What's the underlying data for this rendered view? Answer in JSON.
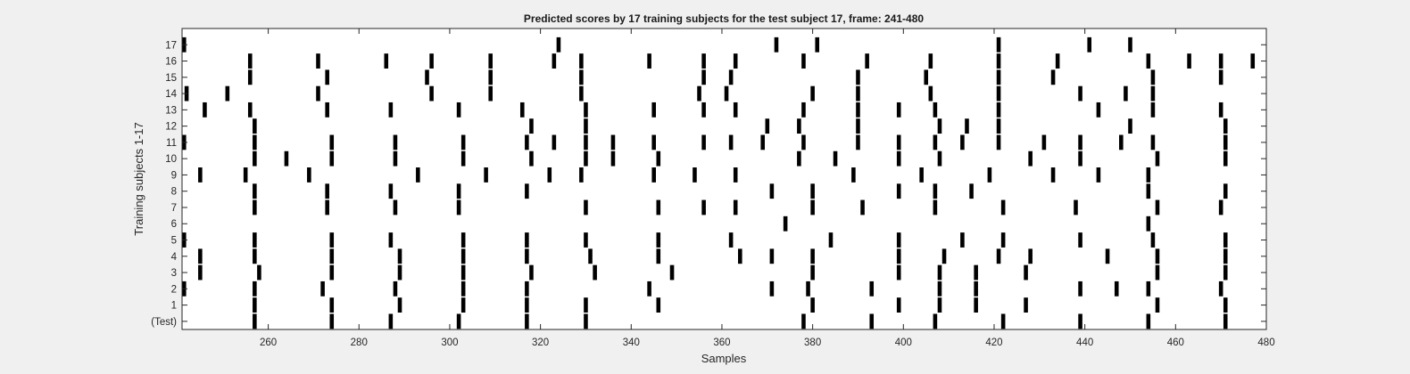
{
  "chart_data": {
    "type": "event-raster",
    "title": "Predicted scores by 17 training subjects for the test subject 17, frame: 241-480",
    "xlabel": "Samples",
    "ylabel": "Training subjects 1-17",
    "xlim": [
      241,
      480
    ],
    "xticks": [
      260,
      280,
      300,
      320,
      340,
      360,
      380,
      400,
      420,
      440,
      460,
      480
    ],
    "grid": false,
    "rows": [
      {
        "label": "(Test)",
        "events": [
          257,
          274,
          287,
          302,
          317,
          330,
          378,
          393,
          407,
          422,
          439,
          454,
          471
        ]
      },
      {
        "label": "1",
        "events": [
          257,
          274,
          289,
          303,
          317,
          330,
          346,
          380,
          399,
          408,
          416,
          427,
          456,
          471
        ]
      },
      {
        "label": "2",
        "events": [
          241,
          257,
          272,
          288,
          303,
          317,
          344,
          371,
          379,
          393,
          408,
          416,
          439,
          447,
          454,
          470
        ]
      },
      {
        "label": "3",
        "events": [
          245,
          258,
          274,
          289,
          303,
          318,
          332,
          349,
          380,
          399,
          408,
          416,
          427,
          456,
          471
        ]
      },
      {
        "label": "4",
        "events": [
          245,
          257,
          274,
          289,
          303,
          317,
          331,
          346,
          364,
          371,
          380,
          399,
          409,
          421,
          428,
          445,
          456,
          471
        ]
      },
      {
        "label": "5",
        "events": [
          241,
          257,
          274,
          287,
          303,
          317,
          330,
          346,
          362,
          384,
          399,
          413,
          422,
          439,
          455,
          471
        ]
      },
      {
        "label": "6",
        "events": [
          374,
          454
        ]
      },
      {
        "label": "7",
        "events": [
          257,
          273,
          288,
          302,
          330,
          346,
          356,
          363,
          380,
          391,
          407,
          422,
          438,
          456,
          470
        ]
      },
      {
        "label": "8",
        "events": [
          257,
          273,
          287,
          302,
          317,
          371,
          380,
          399,
          407,
          415,
          454,
          471
        ]
      },
      {
        "label": "9",
        "events": [
          245,
          255,
          269,
          293,
          308,
          322,
          329,
          345,
          354,
          363,
          389,
          404,
          419,
          433,
          443,
          454
        ]
      },
      {
        "label": "10",
        "events": [
          257,
          264,
          274,
          288,
          303,
          318,
          330,
          336,
          346,
          377,
          385,
          399,
          408,
          428,
          439,
          456,
          471
        ]
      },
      {
        "label": "11",
        "events": [
          241,
          257,
          274,
          288,
          303,
          317,
          323,
          330,
          336,
          345,
          356,
          362,
          369,
          378,
          390,
          399,
          407,
          413,
          421,
          431,
          439,
          448,
          455,
          471
        ]
      },
      {
        "label": "12",
        "events": [
          257,
          318,
          330,
          370,
          377,
          390,
          408,
          414,
          421,
          450,
          471
        ]
      },
      {
        "label": "13",
        "events": [
          246,
          256,
          273,
          287,
          302,
          316,
          330,
          345,
          356,
          363,
          378,
          390,
          399,
          407,
          421,
          443,
          455,
          470
        ]
      },
      {
        "label": "14",
        "events": [
          242,
          251,
          271,
          296,
          309,
          329,
          355,
          361,
          380,
          390,
          406,
          421,
          439,
          449,
          455
        ]
      },
      {
        "label": "15",
        "events": [
          256,
          273,
          295,
          309,
          329,
          356,
          362,
          390,
          405,
          421,
          433,
          455,
          470
        ]
      },
      {
        "label": "16",
        "events": [
          256,
          271,
          286,
          296,
          309,
          323,
          329,
          344,
          356,
          363,
          378,
          392,
          406,
          421,
          434,
          454,
          463,
          470,
          477
        ]
      },
      {
        "label": "17",
        "events": [
          241,
          324,
          372,
          381,
          421,
          441,
          450
        ]
      }
    ]
  }
}
